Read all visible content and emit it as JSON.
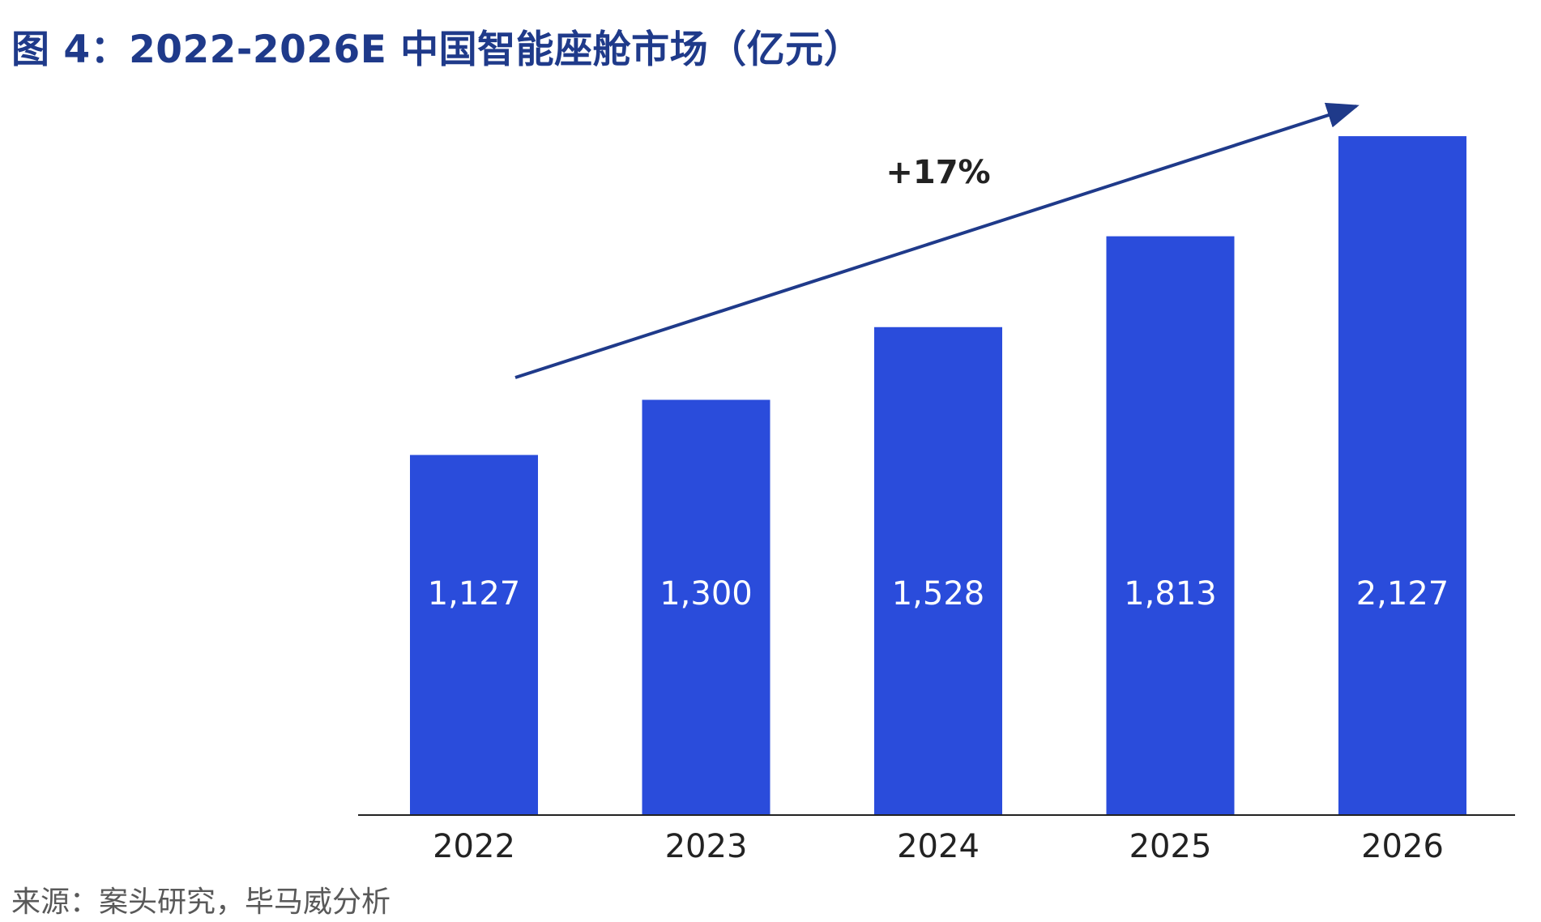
{
  "figure": {
    "title": "图 4：2022-2026E 中国智能座舱市场（亿元）",
    "source": "来源：案头研究，毕马威分析"
  },
  "chart_data": {
    "type": "bar",
    "title": "图 4：2022-2026E 中国智能座舱市场（亿元）",
    "categories": [
      "2022",
      "2023",
      "2024",
      "2025",
      "2026"
    ],
    "series": [
      {
        "values": [
          1127,
          1300,
          1528,
          1813,
          2127
        ],
        "labels": [
          "1,127",
          "1,300",
          "1,528",
          "1,813",
          "2,127"
        ]
      }
    ],
    "ylim": [
      0,
      2300
    ],
    "grid": false,
    "legend": "none",
    "bar_color": "#2a4cdb",
    "axis_color": "#222222",
    "annotations": [
      {
        "type": "growth-arrow",
        "text": "+17%",
        "color": "#1f3a8a"
      }
    ]
  }
}
